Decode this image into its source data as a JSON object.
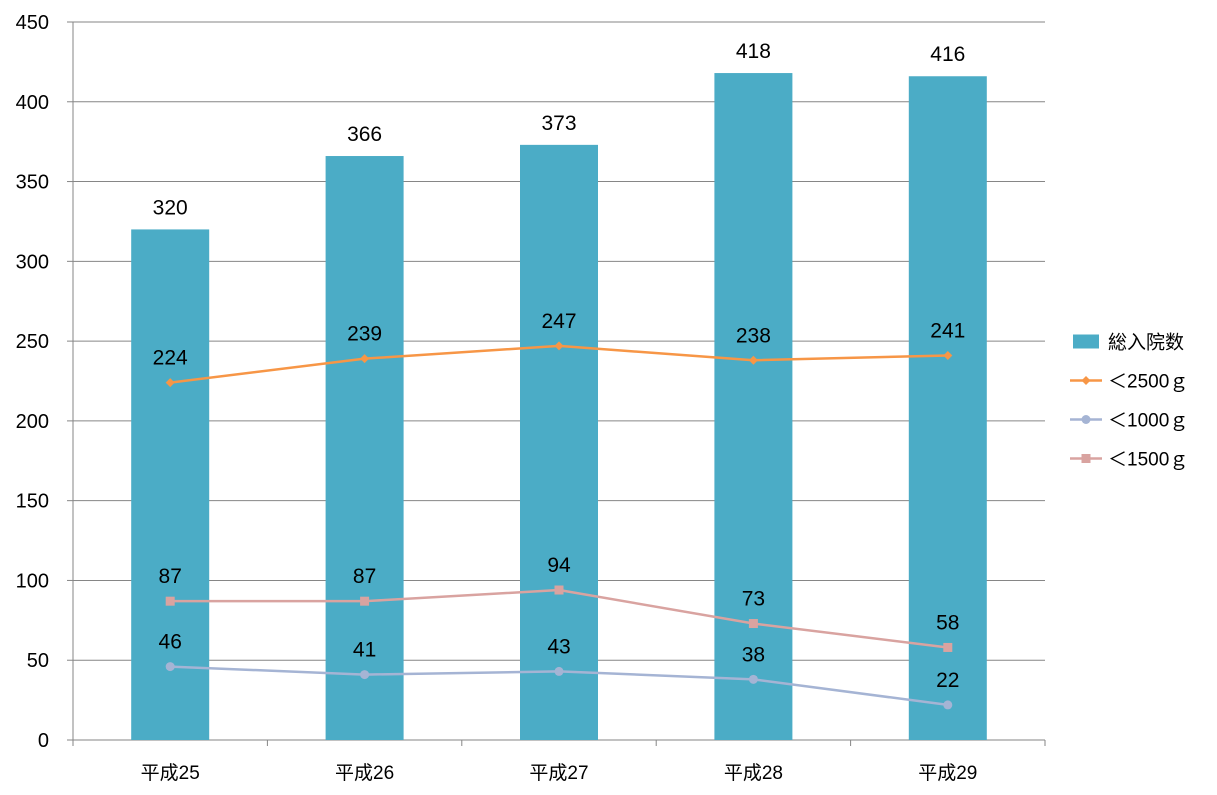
{
  "chart_data": {
    "type": "bar",
    "categories": [
      "平成25",
      "平成26",
      "平成27",
      "平成28",
      "平成29"
    ],
    "ylim": [
      0,
      450
    ],
    "yticks": [
      0,
      50,
      100,
      150,
      200,
      250,
      300,
      350,
      400,
      450
    ],
    "grid": true,
    "legend_position": "right",
    "series": [
      {
        "name": "総入院数",
        "kind": "bar",
        "marker": "none",
        "color": "#4BACC6",
        "values": [
          320,
          366,
          373,
          418,
          416
        ]
      },
      {
        "name": "＜2500ｇ",
        "kind": "line",
        "marker": "diamond",
        "color": "#F79646",
        "values": [
          224,
          239,
          247,
          238,
          241
        ]
      },
      {
        "name": "＜1000ｇ",
        "kind": "line",
        "marker": "circle",
        "color": "#A5B4D4",
        "values": [
          46,
          41,
          43,
          38,
          22
        ]
      },
      {
        "name": "＜1500ｇ",
        "kind": "line",
        "marker": "square",
        "color": "#D9A3A0",
        "values": [
          87,
          87,
          94,
          73,
          58
        ]
      }
    ]
  }
}
